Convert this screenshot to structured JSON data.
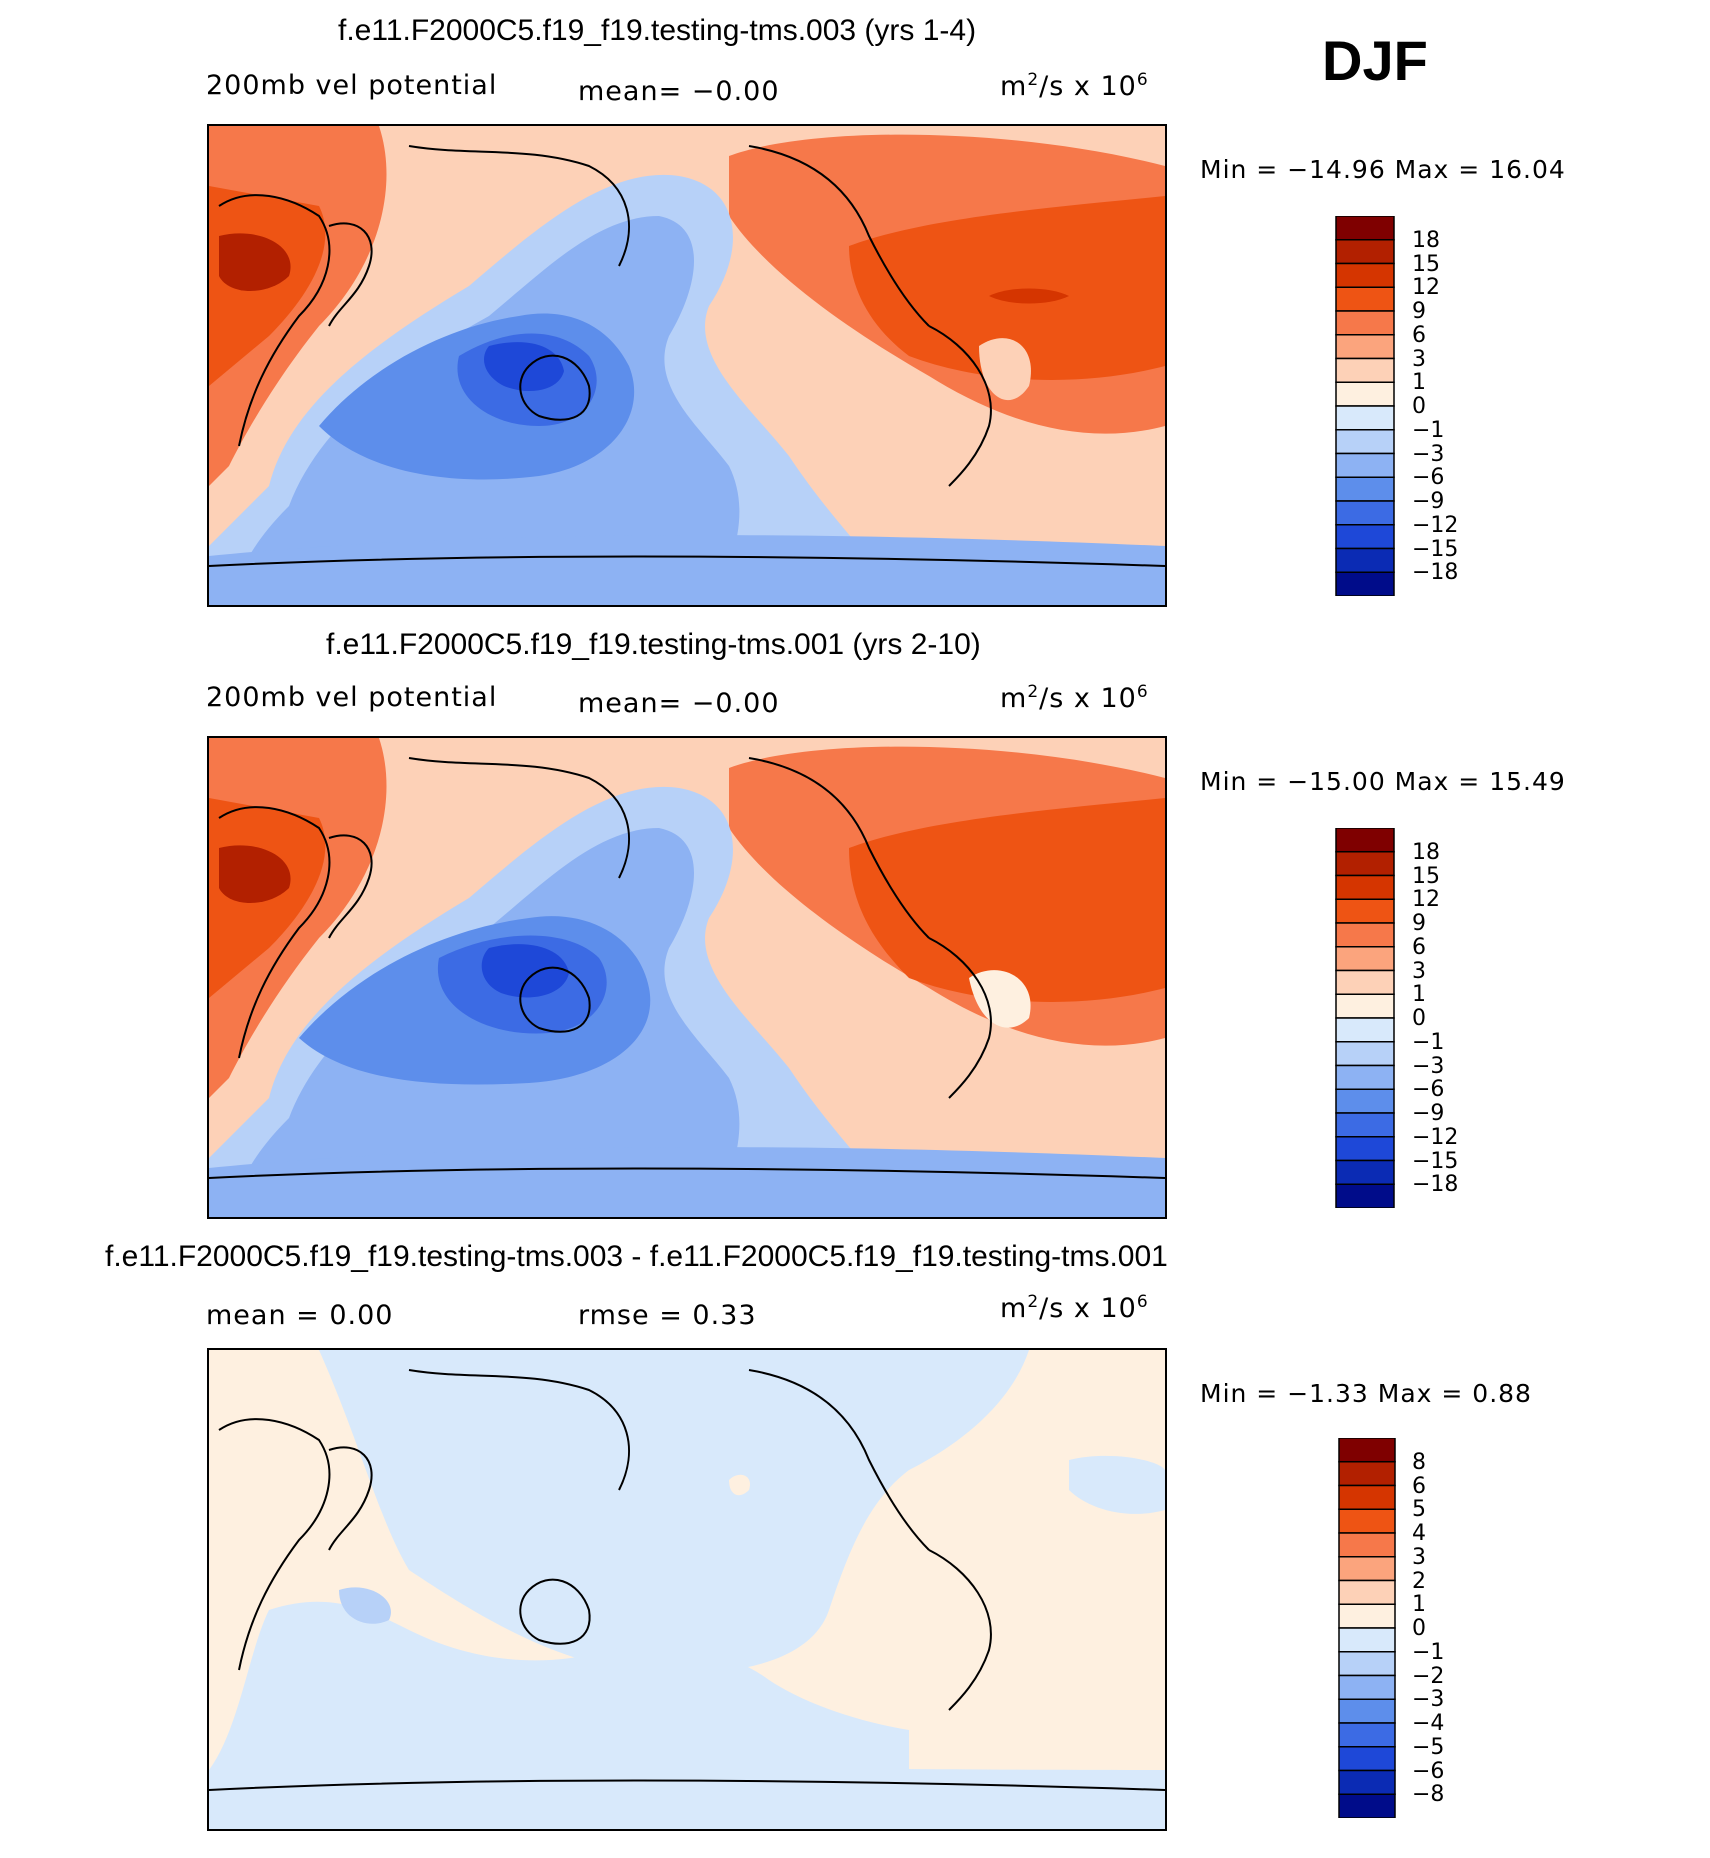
{
  "season": "DJF",
  "panels": [
    {
      "title": "f.e11.F2000C5.f19_f19.testing-tms.003 (yrs 1-4)",
      "left_label": "200mb vel potential",
      "center_label": "mean=  −0.00",
      "units_base": "m",
      "units_exp": "2",
      "units_rest": "/s x 10",
      "units_exp2": "6",
      "minmax": "Min = −14.96 Max =  16.04",
      "colorbar_labels": [
        "18",
        "15",
        "12",
        "9",
        "6",
        "3",
        "1",
        "0",
        "−1",
        "−3",
        "−6",
        "−9",
        "−12",
        "−15",
        "−18"
      ],
      "colors": [
        "#7f0000",
        "#b22000",
        "#d53500",
        "#ee5414",
        "#f6784a",
        "#fba47d",
        "#fdd1b7",
        "#fef0e0",
        "#d8e9fb",
        "#b7d1f8",
        "#8db2f3",
        "#5d8eeb",
        "#3c6be4",
        "#1e48d8",
        "#0b2bb4",
        "#000c8a"
      ]
    },
    {
      "title": "f.e11.F2000C5.f19_f19.testing-tms.001 (yrs 2-10)",
      "left_label": "200mb vel potential",
      "center_label": "mean=  −0.00",
      "units_base": "m",
      "units_exp": "2",
      "units_rest": "/s x 10",
      "units_exp2": "6",
      "minmax": "Min = −15.00 Max =  15.49",
      "colorbar_labels": [
        "18",
        "15",
        "12",
        "9",
        "6",
        "3",
        "1",
        "0",
        "−1",
        "−3",
        "−6",
        "−9",
        "−12",
        "−15",
        "−18"
      ],
      "colors": [
        "#7f0000",
        "#b22000",
        "#d53500",
        "#ee5414",
        "#f6784a",
        "#fba47d",
        "#fdd1b7",
        "#fef0e0",
        "#d8e9fb",
        "#b7d1f8",
        "#8db2f3",
        "#5d8eeb",
        "#3c6be4",
        "#1e48d8",
        "#0b2bb4",
        "#000c8a"
      ]
    },
    {
      "title": "f.e11.F2000C5.f19_f19.testing-tms.003 - f.e11.F2000C5.f19_f19.testing-tms.001",
      "left_label": "mean =    0.00",
      "center_label": "rmse =    0.33",
      "units_base": "m",
      "units_exp": "2",
      "units_rest": "/s x 10",
      "units_exp2": "6",
      "minmax": "Min =  −1.33 Max =   0.88",
      "colorbar_labels": [
        "8",
        "6",
        "5",
        "4",
        "3",
        "2",
        "1",
        "0",
        "−1",
        "−2",
        "−3",
        "−4",
        "−5",
        "−6",
        "−8"
      ],
      "colors": [
        "#7f0000",
        "#b22000",
        "#d53500",
        "#ee5414",
        "#f6784a",
        "#fba47d",
        "#fdd1b7",
        "#fef0e0",
        "#d8e9fb",
        "#b7d1f8",
        "#8db2f3",
        "#5d8eeb",
        "#3c6be4",
        "#1e48d8",
        "#0b2bb4",
        "#000c8a"
      ]
    }
  ]
}
